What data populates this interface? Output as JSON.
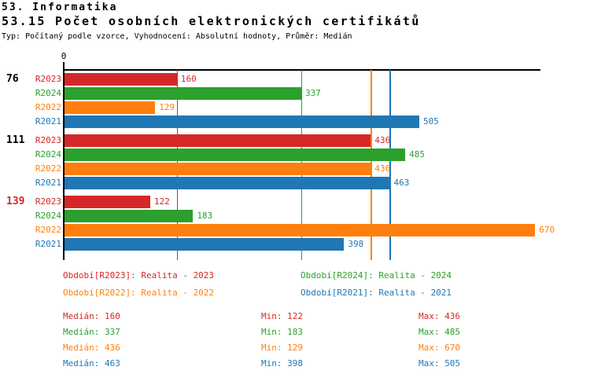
{
  "header": {
    "title1": "53. Informatika",
    "title2": "53.15 Počet osobních elektronických certifikátů",
    "meta": "Typ: Počítaný podle vzorce, Vyhodnocení: Absolutní hodnoty, Průměr: Medián"
  },
  "colors": {
    "R2023": "#d62728",
    "R2024": "#2ca02c",
    "R2022": "#ff7f0e",
    "R2021": "#1f77b4",
    "axis": "#000000"
  },
  "chart_data": {
    "type": "bar",
    "orientation": "horizontal",
    "title": "53.15 Počet osobních elektronických certifikátů",
    "xlim": [
      0,
      680
    ],
    "axis_zero_label": "0",
    "grid": false,
    "series_order": [
      "R2023",
      "R2024",
      "R2022",
      "R2021"
    ],
    "series_colors": {
      "R2023": "#d62728",
      "R2024": "#2ca02c",
      "R2022": "#ff7f0e",
      "R2021": "#1f77b4"
    },
    "groups": [
      {
        "label": "76",
        "label_color": "#000000",
        "bars": [
          {
            "series": "R2023",
            "value": 160
          },
          {
            "series": "R2024",
            "value": 337
          },
          {
            "series": "R2022",
            "value": 129
          },
          {
            "series": "R2021",
            "value": 505
          }
        ]
      },
      {
        "label": "111",
        "label_color": "#000000",
        "bars": [
          {
            "series": "R2023",
            "value": 436
          },
          {
            "series": "R2024",
            "value": 485
          },
          {
            "series": "R2022",
            "value": 436
          },
          {
            "series": "R2021",
            "value": 463
          }
        ]
      },
      {
        "label": "139",
        "label_color": "#d62728",
        "bars": [
          {
            "series": "R2023",
            "value": 122
          },
          {
            "series": "R2024",
            "value": 183
          },
          {
            "series": "R2022",
            "value": 670
          },
          {
            "series": "R2021",
            "value": 398
          }
        ]
      }
    ],
    "reference_lines": [
      {
        "name": "median-R2023",
        "value": 160,
        "color": "#d62728"
      },
      {
        "name": "median-R2024",
        "value": 337,
        "color": "#2ca02c"
      },
      {
        "name": "median-R2022",
        "value": 436,
        "color": "#ff7f0e"
      },
      {
        "name": "median-R2021",
        "value": 463,
        "color": "#1f77b4"
      }
    ],
    "legend": {
      "items": [
        {
          "text": "Období[R2023]: Realita - 2023",
          "color": "#d62728"
        },
        {
          "text": "Období[R2024]: Realita - 2024",
          "color": "#2ca02c"
        },
        {
          "text": "Období[R2022]: Realita - 2022",
          "color": "#ff7f0e"
        },
        {
          "text": "Období[R2021]: Realita - 2021",
          "color": "#1f77b4"
        }
      ]
    },
    "stats": [
      {
        "series": "R2023",
        "color": "#d62728",
        "median": "Medián: 160",
        "min": "Min: 122",
        "max": "Max: 436"
      },
      {
        "series": "R2024",
        "color": "#2ca02c",
        "median": "Medián: 337",
        "min": "Min: 183",
        "max": "Max: 485"
      },
      {
        "series": "R2022",
        "color": "#ff7f0e",
        "median": "Medián: 436",
        "min": "Min: 129",
        "max": "Max: 670"
      },
      {
        "series": "R2021",
        "color": "#1f77b4",
        "median": "Medián: 463",
        "min": "Min: 398",
        "max": "Max: 505"
      }
    ]
  }
}
